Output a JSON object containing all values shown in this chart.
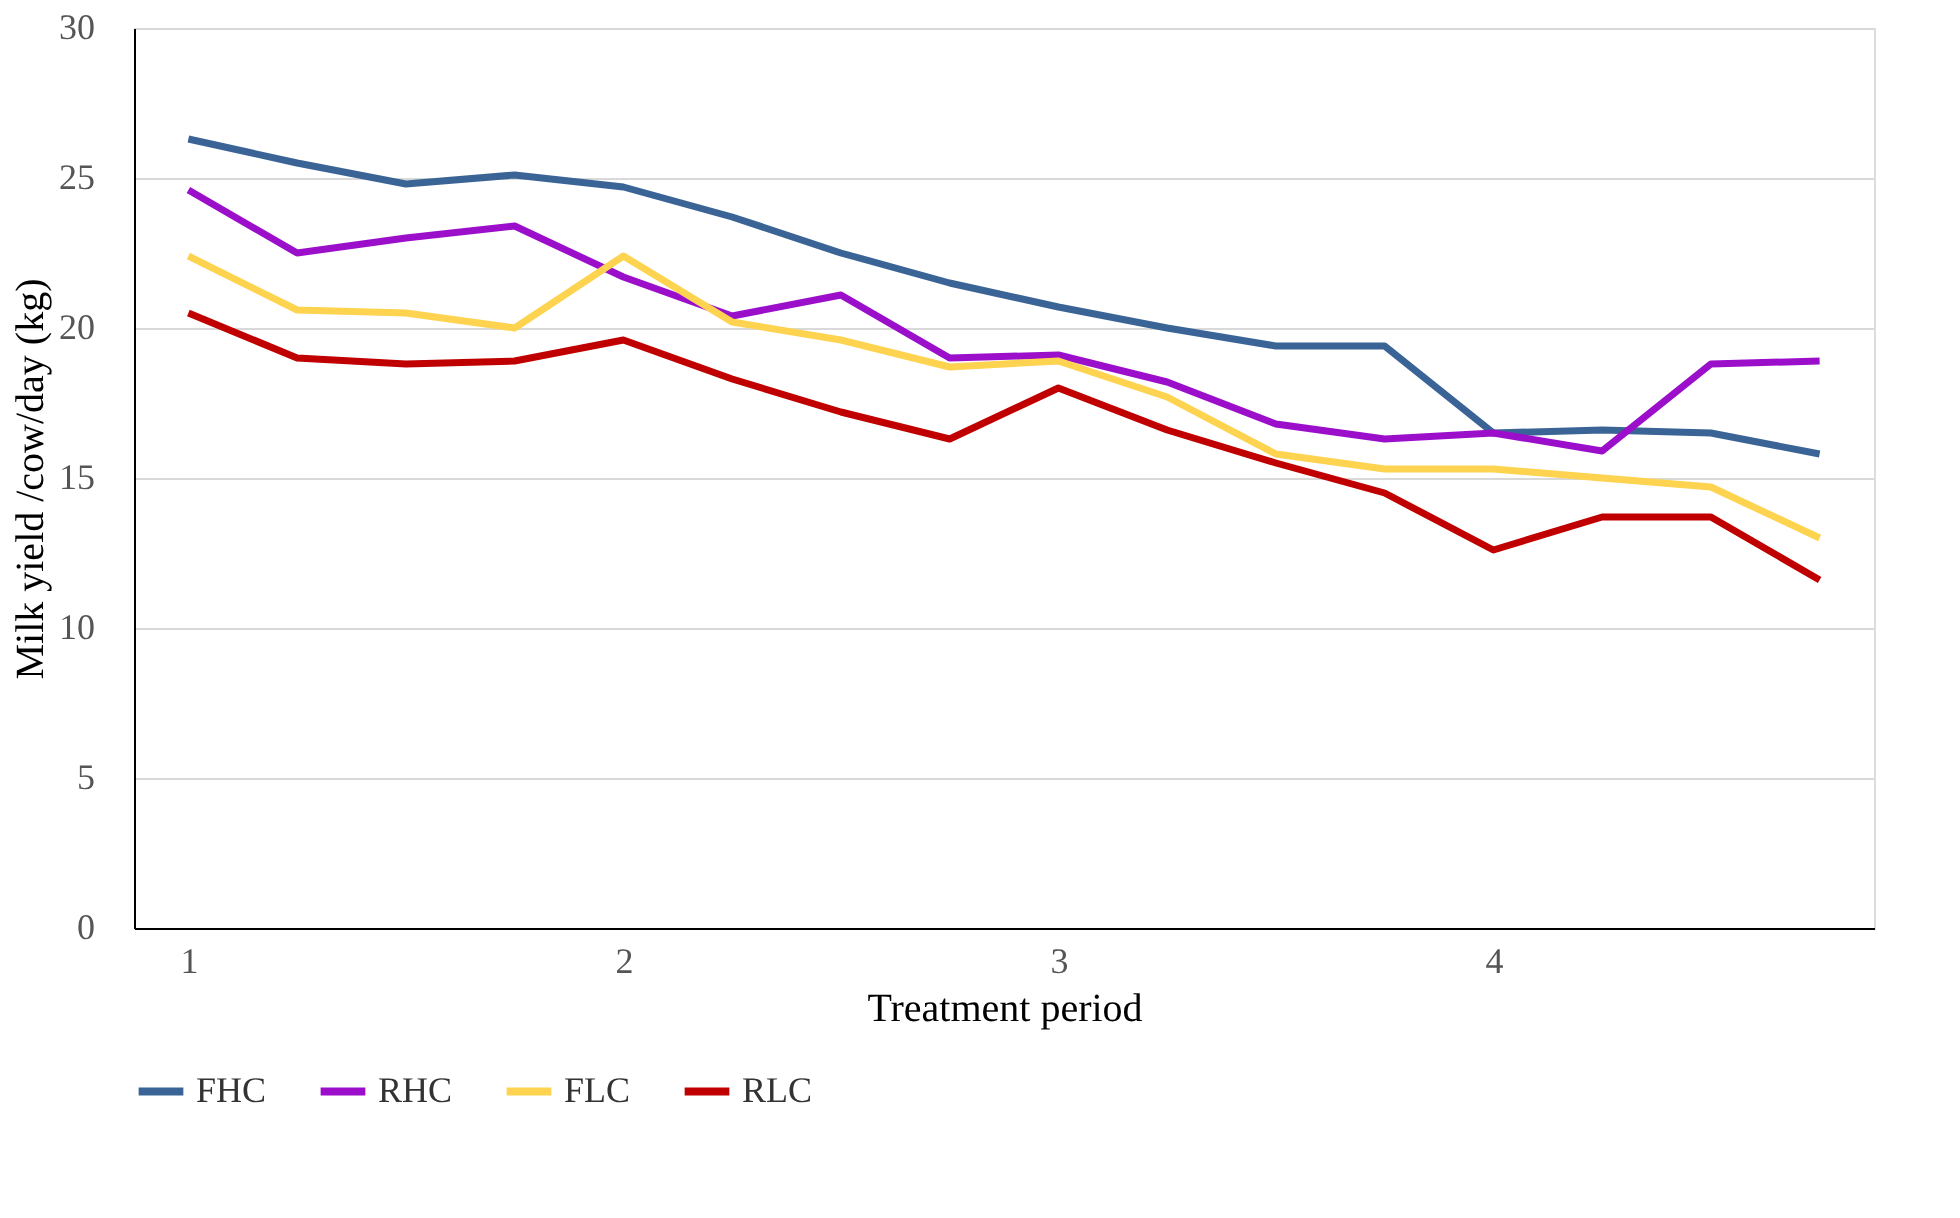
{
  "chart_data": {
    "type": "line",
    "xlabel": "Treatment period",
    "ylabel": "Milk yield /cow/day (kg)",
    "categories": [
      "1",
      null,
      null,
      null,
      "2",
      null,
      null,
      null,
      "3",
      null,
      null,
      null,
      "4",
      null,
      null,
      null
    ],
    "series": [
      {
        "name": "FHC",
        "color": "#3b6496",
        "values": [
          26.3,
          25.5,
          24.8,
          25.1,
          24.7,
          23.7,
          22.5,
          21.5,
          20.7,
          20.0,
          19.4,
          19.4,
          16.5,
          16.6,
          16.5,
          15.8
        ]
      },
      {
        "name": "RHC",
        "color": "#9b0fcb",
        "values": [
          24.6,
          22.5,
          23.0,
          23.4,
          21.7,
          20.4,
          21.1,
          19.0,
          19.1,
          18.2,
          16.8,
          16.3,
          16.5,
          15.9,
          18.8,
          18.9
        ]
      },
      {
        "name": "FLC",
        "color": "#fdd34f",
        "values": [
          22.4,
          20.6,
          20.5,
          20.0,
          22.4,
          20.2,
          19.6,
          18.7,
          18.9,
          17.7,
          15.8,
          15.3,
          15.3,
          15.0,
          14.7,
          13.0
        ]
      },
      {
        "name": "RLC",
        "color": "#c00000",
        "values": [
          20.5,
          19.0,
          18.8,
          18.9,
          19.6,
          18.3,
          17.2,
          16.3,
          18.0,
          16.6,
          15.5,
          14.5,
          12.6,
          13.7,
          13.7,
          11.6
        ]
      }
    ],
    "ylim": [
      0,
      30
    ],
    "yticks": [
      0,
      5,
      10,
      15,
      20,
      25,
      30
    ],
    "grid": "y",
    "legend": "bottom",
    "marker": "none",
    "line_style": "solid"
  }
}
